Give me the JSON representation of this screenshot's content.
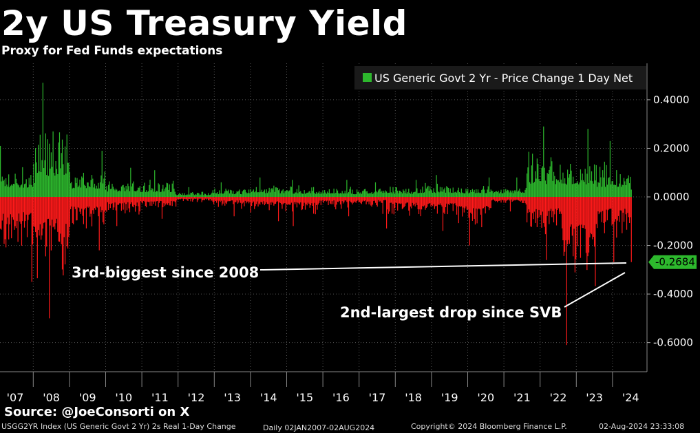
{
  "header": {
    "title": "2y US Treasury Yield",
    "subtitle": "Proxy for Fed Funds expectations"
  },
  "chart_data": {
    "type": "bar",
    "series": [
      {
        "name": "US Generic Govt 2 Yr - Price Change 1 Day Net",
        "color": "#2db82d",
        "negative_color": "#ff1a1a"
      }
    ],
    "ylim": [
      -0.72,
      0.55
    ],
    "yticks": [
      0.4,
      0.2,
      0.0,
      -0.2,
      -0.4,
      -0.6
    ],
    "ytick_labels": [
      "0.4000",
      "0.2000",
      "0.0000",
      "-0.2000",
      "-0.4000",
      "-0.6000"
    ],
    "x_labels": [
      "'07",
      "'08",
      "'09",
      "'10",
      "'11",
      "'12",
      "'13",
      "'14",
      "'15",
      "'16",
      "'17",
      "'18",
      "'19",
      "'20",
      "'21",
      "'22",
      "'23",
      "'24"
    ],
    "last_value": -0.2684,
    "last_value_label": "-0.2684",
    "daily_range": "Daily 02JAN2007-02AUG2024",
    "daily_range_profile": [
      {
        "year": "'07",
        "up_max": 0.21,
        "down_max": -0.35
      },
      {
        "year": "'08",
        "up_max": 0.47,
        "down_max": -0.5
      },
      {
        "year": "'09",
        "up_max": 0.19,
        "down_max": -0.22
      },
      {
        "year": "'10",
        "up_max": 0.12,
        "down_max": -0.12
      },
      {
        "year": "'11",
        "up_max": 0.11,
        "down_max": -0.09
      },
      {
        "year": "'12",
        "up_max": 0.04,
        "down_max": -0.04
      },
      {
        "year": "'13",
        "up_max": 0.06,
        "down_max": -0.08
      },
      {
        "year": "'14",
        "up_max": 0.08,
        "down_max": -0.1
      },
      {
        "year": "'15",
        "up_max": 0.07,
        "down_max": -0.12
      },
      {
        "year": "'16",
        "up_max": 0.07,
        "down_max": -0.08
      },
      {
        "year": "'17",
        "up_max": 0.06,
        "down_max": -0.07
      },
      {
        "year": "'18",
        "up_max": 0.07,
        "down_max": -0.13
      },
      {
        "year": "'19",
        "up_max": 0.09,
        "down_max": -0.14
      },
      {
        "year": "'20",
        "up_max": 0.08,
        "down_max": -0.2
      },
      {
        "year": "'21",
        "up_max": 0.08,
        "down_max": -0.06
      },
      {
        "year": "'22",
        "up_max": 0.29,
        "down_max": -0.26
      },
      {
        "year": "'23",
        "up_max": 0.28,
        "down_max": -0.61
      },
      {
        "year": "'24",
        "up_max": 0.23,
        "down_max": -0.2684
      }
    ],
    "annotations": [
      {
        "text": "3rd-biggest since 2008"
      },
      {
        "text": "2nd-largest drop since SVB"
      }
    ]
  },
  "footer": {
    "source": "Source: @JoeConsorti on X",
    "index_desc": "USGG2YR Index (US Generic Govt 2 Yr) 2s Real 1-Day Change",
    "copyright": "Copyright© 2024 Bloomberg Finance L.P.",
    "timestamp": "02-Aug-2024 23:33:08"
  }
}
